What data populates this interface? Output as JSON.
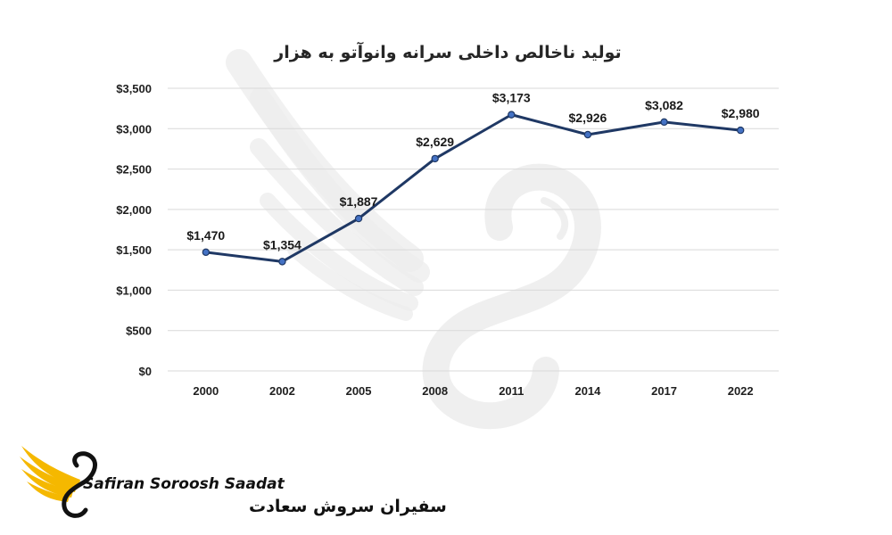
{
  "chart_data": {
    "type": "line",
    "title": "تولید ناخالص داخلی سرانه وانوآتو به هزار",
    "categories": [
      "2000",
      "2002",
      "2005",
      "2008",
      "2011",
      "2014",
      "2017",
      "2022"
    ],
    "series": [
      {
        "values": [
          1470,
          1354,
          1887,
          2629,
          3173,
          2926,
          3082,
          2980
        ],
        "labels": [
          "$1,470",
          "$1,354",
          "$1,887",
          "$2,629",
          "$3,173",
          "$2,926",
          "$3,082",
          "$2,980"
        ],
        "color": "#1f3864"
      }
    ],
    "ylim": [
      0,
      3500
    ],
    "yticks": [
      0,
      500,
      1000,
      1500,
      2000,
      2500,
      3000,
      3500
    ],
    "ytick_labels": [
      "$0",
      "$500",
      "$1,000",
      "$1,500",
      "$2,000",
      "$2,500",
      "$3,000",
      "$3,500"
    ],
    "grid": true,
    "legend": "none",
    "marker_color": "#4472c4"
  },
  "logo": {
    "name_en": "Safiran Soroosh Saadat",
    "name_fa": "سفیران سروش سعادت",
    "accent_color": "#f5b800",
    "icon": "winged-s-logo-icon"
  },
  "watermark": {
    "icon": "winged-s-watermark-icon",
    "color": "#e9e9e9"
  }
}
